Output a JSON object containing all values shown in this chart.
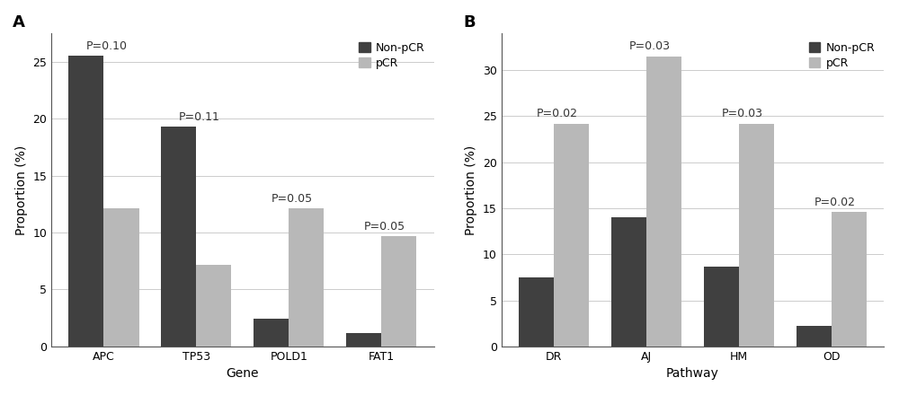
{
  "panel_A": {
    "categories": [
      "APC",
      "TP53",
      "POLD1",
      "FAT1"
    ],
    "non_pcr": [
      25.5,
      19.3,
      2.4,
      1.2
    ],
    "pcr": [
      12.1,
      7.2,
      12.1,
      9.7
    ],
    "pvalues": [
      "P=0.10",
      "P=0.11",
      "P=0.05",
      "P=0.05"
    ],
    "xlabel": "Gene",
    "ylabel": "Proportion (%)",
    "ylim": [
      0,
      27.5
    ],
    "yticks": [
      0,
      5,
      10,
      15,
      20,
      25
    ],
    "panel_label": "A"
  },
  "panel_B": {
    "categories": [
      "DR",
      "AJ",
      "HM",
      "OD"
    ],
    "non_pcr": [
      7.5,
      14.0,
      8.7,
      2.2
    ],
    "pcr": [
      24.2,
      31.5,
      24.2,
      14.6
    ],
    "pvalues": [
      "P=0.02",
      "P=0.03",
      "P=0.03",
      "P=0.02"
    ],
    "xlabel": "Pathway",
    "ylabel": "Proportion (%)",
    "ylim": [
      0,
      34
    ],
    "yticks": [
      0,
      5,
      10,
      15,
      20,
      25,
      30
    ],
    "panel_label": "B"
  },
  "color_non_pcr": "#404040",
  "color_pcr": "#b8b8b8",
  "legend_labels": [
    "Non-pCR",
    "pCR"
  ],
  "bar_width": 0.38,
  "grid_color": "#cccccc",
  "background_color": "#ffffff",
  "font_size": 9,
  "pvalue_font_size": 9,
  "label_font_size": 10,
  "tick_font_size": 9
}
